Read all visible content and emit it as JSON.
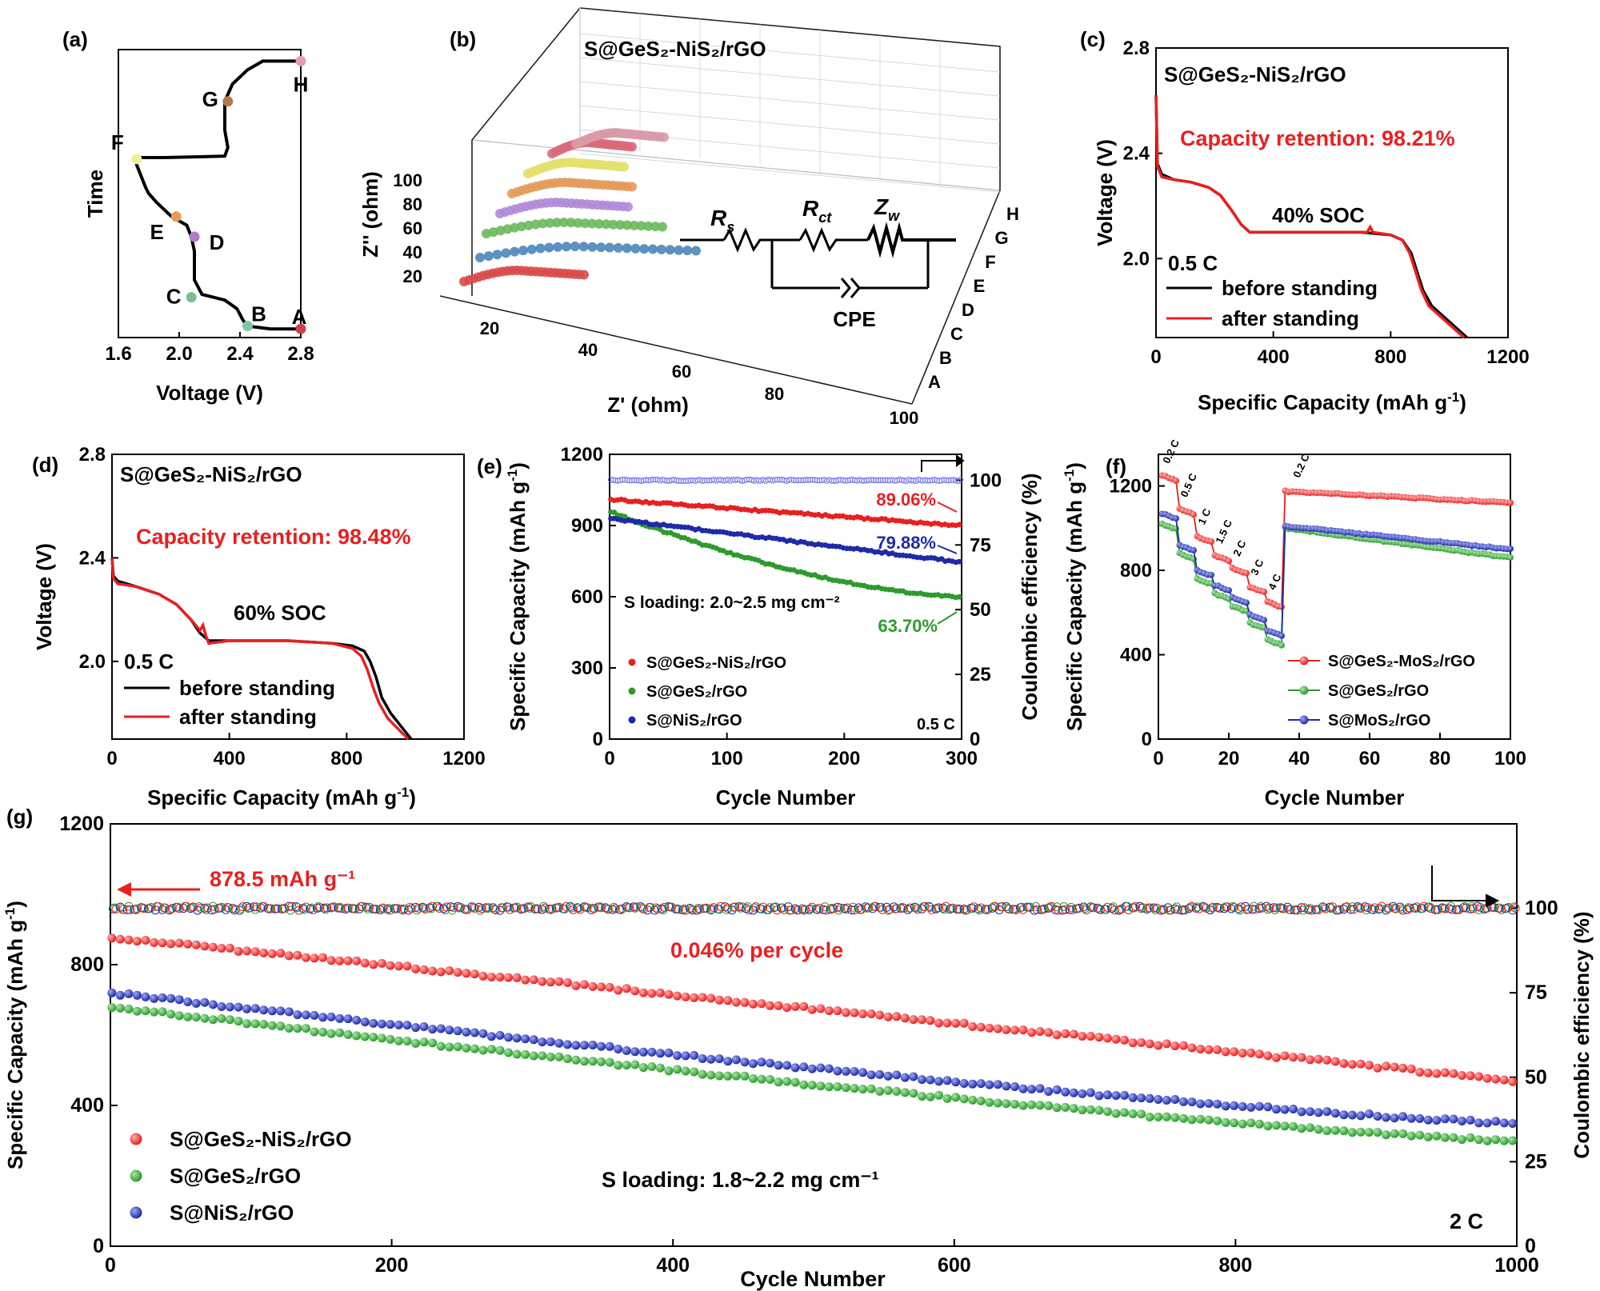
{
  "panels": {
    "a": {
      "label": "(a)"
    },
    "b": {
      "label": "(b)"
    },
    "c": {
      "label": "(c)"
    },
    "d": {
      "label": "(d)"
    },
    "e": {
      "label": "(e)"
    },
    "f": {
      "label": "(f)"
    },
    "g": {
      "label": "(g)"
    }
  },
  "colors": {
    "red": "#e82020",
    "green": "#2e9a2e",
    "blue": "#1e2aa8",
    "black": "#000000",
    "lavender": "#a4a4f0"
  },
  "chart_data": [
    {
      "id": "a",
      "type": "line",
      "xlabel": "Voltage (V)",
      "ylabel": "Time",
      "xlim": [
        1.6,
        2.8
      ],
      "xticks": [
        "1.6",
        "2.0",
        "2.4",
        "2.8"
      ],
      "curve": [
        [
          2.8,
          0.03
        ],
        [
          2.6,
          0.03
        ],
        [
          2.45,
          0.04
        ],
        [
          2.42,
          0.06
        ],
        [
          2.38,
          0.1
        ],
        [
          2.3,
          0.13
        ],
        [
          2.15,
          0.15
        ],
        [
          2.1,
          0.2
        ],
        [
          2.1,
          0.3
        ],
        [
          2.08,
          0.35
        ],
        [
          2.05,
          0.39
        ],
        [
          1.95,
          0.42
        ],
        [
          1.85,
          0.47
        ],
        [
          1.8,
          0.5
        ],
        [
          1.78,
          0.52
        ],
        [
          1.75,
          0.56
        ],
        [
          1.72,
          0.6
        ],
        [
          1.72,
          0.625
        ],
        [
          1.9,
          0.625
        ],
        [
          2.3,
          0.63
        ],
        [
          2.32,
          0.66
        ],
        [
          2.3,
          0.72
        ],
        [
          2.3,
          0.82
        ],
        [
          2.35,
          0.88
        ],
        [
          2.45,
          0.93
        ],
        [
          2.55,
          0.96
        ],
        [
          2.8,
          0.96
        ]
      ],
      "points": [
        {
          "name": "A",
          "x": 2.8,
          "y": 0.03,
          "color": "#c8424a"
        },
        {
          "name": "B",
          "x": 2.45,
          "y": 0.04,
          "color": "#7fc7a3"
        },
        {
          "name": "C",
          "x": 2.08,
          "y": 0.14,
          "color": "#78c08c"
        },
        {
          "name": "D",
          "x": 2.1,
          "y": 0.35,
          "color": "#b07acc"
        },
        {
          "name": "E",
          "x": 1.98,
          "y": 0.42,
          "color": "#e39a5a"
        },
        {
          "name": "F",
          "x": 1.72,
          "y": 0.62,
          "color": "#f2ed9a"
        },
        {
          "name": "G",
          "x": 2.32,
          "y": 0.82,
          "color": "#b47a4c"
        },
        {
          "name": "H",
          "x": 2.8,
          "y": 0.96,
          "color": "#e89ab0"
        }
      ]
    },
    {
      "id": "b",
      "type": "scatter",
      "title": "S@GeS₂-NiS₂/rGO",
      "xlabel": "Z' (ohm)",
      "ylabel": "Z'' (ohm)",
      "xticks": [
        "20",
        "40",
        "60",
        "80",
        "100"
      ],
      "zticks": [
        "20",
        "40",
        "60",
        "80",
        "100"
      ],
      "series_labels": [
        "A",
        "B",
        "C",
        "D",
        "E",
        "F",
        "G",
        "H"
      ],
      "series_colors": [
        "#d94a4a",
        "#4a86b8",
        "#6ab85c",
        "#b08ad8",
        "#e39a5a",
        "#e3e06a",
        "#d96a7a",
        "#d99aa8"
      ],
      "circuit": {
        "rs": "R",
        "rs_sub": "s",
        "rct": "R",
        "rct_sub": "ct",
        "zw": "Z",
        "zw_sub": "w",
        "cpe": "CPE"
      }
    },
    {
      "id": "c",
      "type": "line",
      "annotation_title": "S@GeS₂-NiS₂/rGO",
      "annotation_retention": "Capacity retention: 98.21%",
      "annotation_soc": "40% SOC",
      "annotation_rate": "0.5 C",
      "xlabel": "Specific Capacity (mAh g⁻¹)",
      "ylabel": "Voltage (V)",
      "xlim": [
        0,
        1200
      ],
      "ylim": [
        1.7,
        2.8
      ],
      "xticks": [
        "0",
        "400",
        "800",
        "1200"
      ],
      "yticks": [
        "2.0",
        "2.4",
        "2.8"
      ],
      "series": [
        {
          "name": "before standing",
          "color": "#000000",
          "points": [
            [
              0,
              2.62
            ],
            [
              5,
              2.36
            ],
            [
              20,
              2.32
            ],
            [
              60,
              2.3
            ],
            [
              120,
              2.29
            ],
            [
              180,
              2.27
            ],
            [
              220,
              2.24
            ],
            [
              260,
              2.18
            ],
            [
              290,
              2.13
            ],
            [
              320,
              2.1
            ],
            [
              360,
              2.1
            ],
            [
              500,
              2.1
            ],
            [
              600,
              2.1
            ],
            [
              700,
              2.1
            ],
            [
              800,
              2.09
            ],
            [
              840,
              2.07
            ],
            [
              870,
              2.02
            ],
            [
              890,
              1.95
            ],
            [
              910,
              1.88
            ],
            [
              940,
              1.82
            ],
            [
              980,
              1.78
            ],
            [
              1020,
              1.74
            ],
            [
              1060,
              1.7
            ]
          ]
        },
        {
          "name": "after standing",
          "color": "#e82020",
          "points": [
            [
              0,
              2.62
            ],
            [
              5,
              2.35
            ],
            [
              20,
              2.31
            ],
            [
              60,
              2.3
            ],
            [
              120,
              2.29
            ],
            [
              180,
              2.27
            ],
            [
              220,
              2.24
            ],
            [
              260,
              2.18
            ],
            [
              290,
              2.13
            ],
            [
              320,
              2.1
            ],
            [
              360,
              2.1
            ],
            [
              500,
              2.1
            ],
            [
              600,
              2.1
            ],
            [
              700,
              2.1
            ],
            [
              720,
              2.1
            ],
            [
              730,
              2.12
            ],
            [
              740,
              2.1
            ],
            [
              800,
              2.09
            ],
            [
              840,
              2.07
            ],
            [
              865,
              2.02
            ],
            [
              885,
              1.95
            ],
            [
              905,
              1.88
            ],
            [
              930,
              1.82
            ],
            [
              970,
              1.78
            ],
            [
              1010,
              1.74
            ],
            [
              1050,
              1.7
            ]
          ]
        }
      ]
    },
    {
      "id": "d",
      "type": "line",
      "annotation_title": "S@GeS₂-NiS₂/rGO",
      "annotation_retention": "Capacity retention: 98.48%",
      "annotation_soc": "60% SOC",
      "annotation_rate": "0.5 C",
      "xlabel": "Specific Capacity (mAh g⁻¹)",
      "ylabel": "Voltage (V)",
      "xlim": [
        0,
        1200
      ],
      "ylim": [
        1.7,
        2.8
      ],
      "xticks": [
        "0",
        "400",
        "800",
        "1200"
      ],
      "yticks": [
        "2.0",
        "2.4",
        "2.8"
      ],
      "series": [
        {
          "name": "before standing",
          "color": "#000000",
          "points": [
            [
              0,
              2.4
            ],
            [
              5,
              2.33
            ],
            [
              20,
              2.31
            ],
            [
              80,
              2.29
            ],
            [
              160,
              2.26
            ],
            [
              220,
              2.22
            ],
            [
              270,
              2.16
            ],
            [
              300,
              2.11
            ],
            [
              330,
              2.08
            ],
            [
              400,
              2.08
            ],
            [
              600,
              2.08
            ],
            [
              750,
              2.07
            ],
            [
              820,
              2.06
            ],
            [
              860,
              2.04
            ],
            [
              880,
              2.0
            ],
            [
              900,
              1.94
            ],
            [
              920,
              1.86
            ],
            [
              950,
              1.8
            ],
            [
              985,
              1.75
            ],
            [
              1020,
              1.7
            ]
          ]
        },
        {
          "name": "after standing",
          "color": "#e82020",
          "points": [
            [
              0,
              2.4
            ],
            [
              5,
              2.32
            ],
            [
              20,
              2.3
            ],
            [
              80,
              2.29
            ],
            [
              160,
              2.26
            ],
            [
              220,
              2.22
            ],
            [
              270,
              2.16
            ],
            [
              300,
              2.12
            ],
            [
              310,
              2.14
            ],
            [
              320,
              2.1
            ],
            [
              330,
              2.07
            ],
            [
              400,
              2.08
            ],
            [
              600,
              2.08
            ],
            [
              750,
              2.07
            ],
            [
              820,
              2.05
            ],
            [
              850,
              2.02
            ],
            [
              870,
              1.97
            ],
            [
              890,
              1.9
            ],
            [
              910,
              1.84
            ],
            [
              940,
              1.78
            ],
            [
              975,
              1.74
            ],
            [
              1010,
              1.7
            ]
          ]
        }
      ]
    },
    {
      "id": "e",
      "type": "scatter",
      "xlabel": "Cycle Number",
      "ylabel": "Specific Capacity (mAh g⁻¹)",
      "ylabel_right": "Coulombic efficiency (%)",
      "xlim": [
        0,
        300
      ],
      "ylim": [
        0,
        1200
      ],
      "ylim_right": [
        0,
        110
      ],
      "xticks": [
        "0",
        "100",
        "200",
        "300"
      ],
      "yticks": [
        "0",
        "300",
        "600",
        "900",
        "1200"
      ],
      "yticks_right": [
        "0",
        "25",
        "50",
        "75",
        "100"
      ],
      "annotation_loading": "S loading: 2.0~2.5 mg cm⁻²",
      "annotation_rate": "0.5 C",
      "labels": [
        {
          "text": "89.06%",
          "color": "#e82020"
        },
        {
          "text": "79.88%",
          "color": "#1e2aa8"
        },
        {
          "text": "63.70%",
          "color": "#2e9a2e"
        }
      ],
      "series": [
        {
          "name": "S@GeS₂-NiS₂/rGO",
          "color": "#e82020",
          "start": 1010,
          "end": 900
        },
        {
          "name": "S@GeS₂/rGO",
          "color": "#2e9a2e",
          "start": 960,
          "end": 600
        },
        {
          "name": "S@NiS₂/rGO",
          "color": "#1e2aa8",
          "start": 930,
          "end": 745
        }
      ],
      "coulombic_efficiency": 100
    },
    {
      "id": "f",
      "type": "scatter",
      "xlabel": "Cycle Number",
      "ylabel": "Specific Capacity (mAh g⁻¹)",
      "xlim": [
        0,
        100
      ],
      "ylim": [
        0,
        1350
      ],
      "xticks": [
        "0",
        "20",
        "40",
        "60",
        "80",
        "100"
      ],
      "yticks": [
        "0",
        "400",
        "800",
        "1200"
      ],
      "rates": [
        "0.2 C",
        "0.5 C",
        "1 C",
        "1.5 C",
        "2 C",
        "3 C",
        "4 C",
        "0.2 C"
      ],
      "series": [
        {
          "name": "S@GeS₂-MoS₂/rGO",
          "color": "#e82020",
          "steps": [
            1250,
            1090,
            960,
            870,
            810,
            720,
            650,
            1175
          ],
          "tail_end": 1120
        },
        {
          "name": "S@GeS₂/rGO",
          "color": "#2e9a2e",
          "steps": [
            1020,
            880,
            760,
            690,
            630,
            550,
            470,
            1000
          ],
          "tail_end": 860
        },
        {
          "name": "S@MoS₂/rGO",
          "color": "#1e2aa8",
          "steps": [
            1070,
            920,
            800,
            730,
            670,
            590,
            515,
            1010
          ],
          "tail_end": 900
        }
      ]
    },
    {
      "id": "g",
      "type": "scatter",
      "xlabel": "Cycle Number",
      "ylabel": "Specific Capacity (mAh g⁻¹)",
      "ylabel_right": "Coulombic efficiency (%)",
      "xlim": [
        0,
        1000
      ],
      "ylim": [
        0,
        1200
      ],
      "ylim_right": [
        0,
        125
      ],
      "xticks": [
        "0",
        "200",
        "400",
        "600",
        "800",
        "1000"
      ],
      "yticks": [
        "0",
        "400",
        "800",
        "1200"
      ],
      "yticks_right": [
        "0",
        "25",
        "50",
        "75",
        "100"
      ],
      "annotation_capacity": "878.5 mAh g⁻¹",
      "annotation_decay": "0.046% per cycle",
      "annotation_loading": "S loading: 1.8~2.2 mg cm⁻¹",
      "annotation_rate": "2 C",
      "series": [
        {
          "name": "S@GeS₂-NiS₂/rGO",
          "color": "#e82020",
          "start": 878.5,
          "end": 470
        },
        {
          "name": "S@GeS₂/rGO",
          "color": "#2e9a2e",
          "start": 680,
          "end": 300
        },
        {
          "name": "S@NiS₂/rGO",
          "color": "#1e2aa8",
          "start": 720,
          "end": 350
        }
      ],
      "coulombic_efficiency": 100
    }
  ]
}
